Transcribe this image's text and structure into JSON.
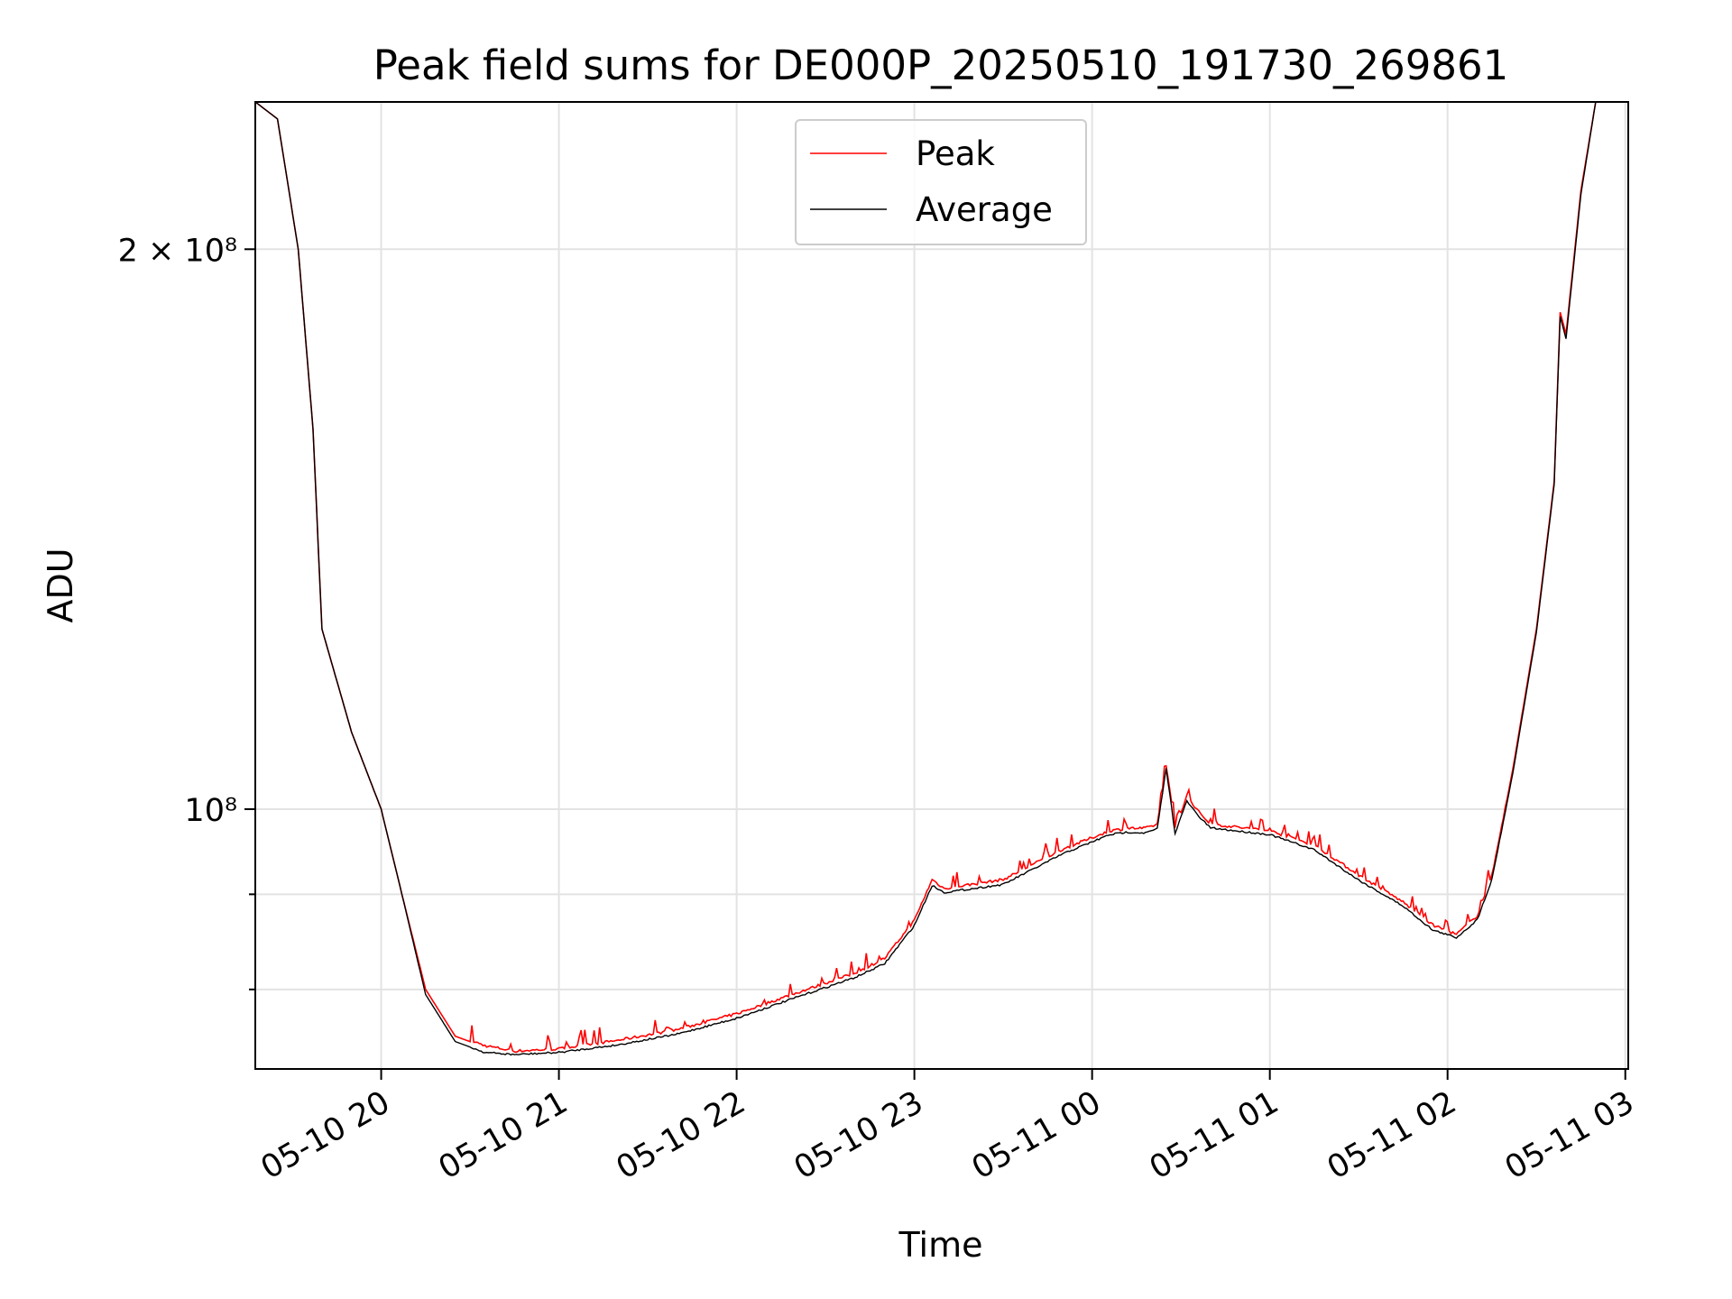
{
  "chart_data": {
    "type": "line",
    "title": "Peak field sums for DE000P_20250510_191730_269861",
    "xlabel": "Time",
    "ylabel": "ADU",
    "yscale": "log",
    "xlim": [
      "05-10 19:17:30",
      "05-11 03:01:00"
    ],
    "ylim": [
      72500000,
      240000000
    ],
    "x_ticks": [
      "05-10 20",
      "05-10 21",
      "05-10 22",
      "05-10 23",
      "05-11 00",
      "05-11 01",
      "05-11 02",
      "05-11 03"
    ],
    "y_ticks": [
      {
        "value": 100000000,
        "label": "10⁸",
        "major": true
      },
      {
        "value": 200000000,
        "label": "2 × 10⁸",
        "major": true
      },
      {
        "value": 80000000,
        "label": "",
        "major": false
      },
      {
        "value": 90000000,
        "label": "",
        "major": false
      }
    ],
    "grid": true,
    "legend_position": "upper center",
    "series": [
      {
        "name": "Peak",
        "color": "#ff0000",
        "x": [
          "05-10 19:17:30",
          "05-10 19:25",
          "05-10 19:32",
          "05-10 19:37",
          "05-10 19:40",
          "05-10 19:50",
          "05-10 20:00",
          "05-10 20:07",
          "05-10 20:15",
          "05-10 20:25",
          "05-10 20:35",
          "05-10 20:45",
          "05-10 21:00",
          "05-10 21:20",
          "05-10 21:40",
          "05-10 22:00",
          "05-10 22:20",
          "05-10 22:40",
          "05-10 22:50",
          "05-10 23:00",
          "05-10 23:06",
          "05-10 23:10",
          "05-10 23:30",
          "05-10 23:50",
          "05-11 00:06",
          "05-11 00:12",
          "05-11 00:18",
          "05-11 00:22",
          "05-11 00:25",
          "05-11 00:28",
          "05-11 00:32",
          "05-11 00:36",
          "05-11 00:40",
          "05-11 01:00",
          "05-11 01:15",
          "05-11 01:30",
          "05-11 01:45",
          "05-11 01:55",
          "05-11 02:03",
          "05-11 02:10",
          "05-11 02:15",
          "05-11 02:22",
          "05-11 02:30",
          "05-11 02:36",
          "05-11 02:38",
          "05-11 02:40",
          "05-11 02:45",
          "05-11 02:50"
        ],
        "y": [
          240000000,
          235000000,
          200000000,
          160000000,
          125000000,
          110000000,
          100000000,
          90000000,
          80000000,
          75500000,
          74500000,
          74000000,
          74200000,
          75000000,
          76000000,
          77500000,
          79500000,
          81500000,
          83000000,
          87000000,
          91500000,
          90500000,
          91500000,
          95000000,
          97200000,
          97500000,
          97500000,
          98000000,
          105500000,
          97500000,
          101500000,
          99500000,
          98000000,
          97200000,
          95500000,
          92000000,
          89000000,
          86500000,
          85500000,
          87500000,
          92000000,
          105000000,
          125000000,
          150000000,
          185000000,
          180000000,
          215000000,
          240000000
        ]
      },
      {
        "name": "Average",
        "color": "#000000",
        "x": [
          "05-10 19:17:30",
          "05-10 19:25",
          "05-10 19:32",
          "05-10 19:37",
          "05-10 19:40",
          "05-10 19:50",
          "05-10 20:00",
          "05-10 20:07",
          "05-10 20:15",
          "05-10 20:25",
          "05-10 20:35",
          "05-10 20:45",
          "05-10 21:00",
          "05-10 21:20",
          "05-10 21:40",
          "05-10 22:00",
          "05-10 22:20",
          "05-10 22:40",
          "05-10 22:50",
          "05-10 23:00",
          "05-10 23:06",
          "05-10 23:10",
          "05-10 23:30",
          "05-10 23:50",
          "05-11 00:06",
          "05-11 00:12",
          "05-11 00:18",
          "05-11 00:22",
          "05-11 00:25",
          "05-11 00:28",
          "05-11 00:32",
          "05-11 00:36",
          "05-11 00:40",
          "05-11 01:00",
          "05-11 01:15",
          "05-11 01:30",
          "05-11 01:45",
          "05-11 01:55",
          "05-11 02:03",
          "05-11 02:10",
          "05-11 02:15",
          "05-11 02:22",
          "05-11 02:30",
          "05-11 02:36",
          "05-11 02:38",
          "05-11 02:40",
          "05-11 02:45",
          "05-11 02:50"
        ],
        "y": [
          240000000,
          235000000,
          200000000,
          160000000,
          125000000,
          110000000,
          100000000,
          90000000,
          79500000,
          75000000,
          74000000,
          73800000,
          74000000,
          74700000,
          75700000,
          77200000,
          79200000,
          81200000,
          82600000,
          86600000,
          91000000,
          90200000,
          91100000,
          94600000,
          96900000,
          97200000,
          97100000,
          97600000,
          105200000,
          97100000,
          101000000,
          99100000,
          97700000,
          96900000,
          95100000,
          91600000,
          88700000,
          86100000,
          85300000,
          87200000,
          91700000,
          104500000,
          124500000,
          149500000,
          184000000,
          179000000,
          214000000,
          240000000
        ]
      }
    ]
  }
}
